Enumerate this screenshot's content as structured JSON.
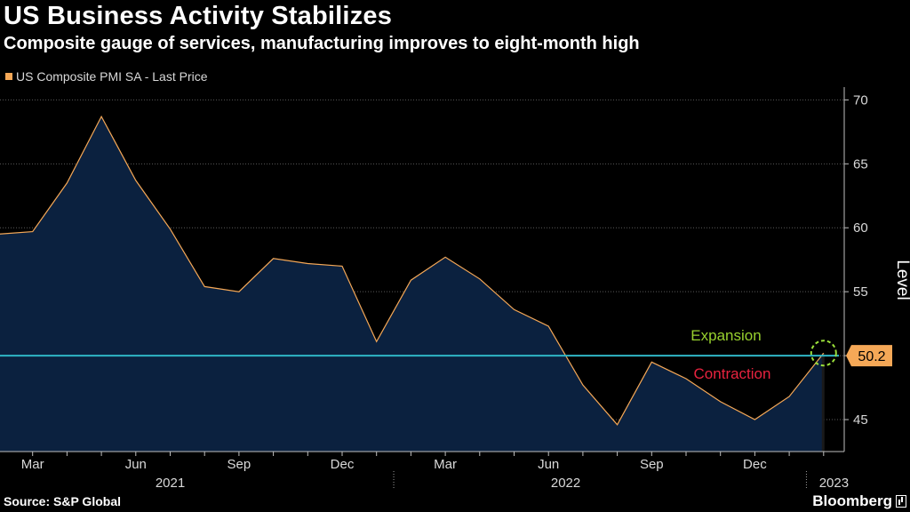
{
  "header": {
    "title": "US Business Activity Stabilizes",
    "subtitle": "Composite gauge of services, manufacturing improves to eight-month high"
  },
  "footer": {
    "source": "Source: S&P Global",
    "brand": "Bloomberg"
  },
  "chart_data": {
    "type": "area",
    "title": "US Business Activity Stabilizes",
    "subtitle": "Composite gauge of services, manufacturing improves to eight-month high",
    "ylabel": "Level",
    "ylim": [
      42.5,
      71
    ],
    "yticks": [
      45,
      50,
      55,
      60,
      65,
      70
    ],
    "ytick_labels": [
      "45",
      "",
      "55",
      "60",
      "65",
      "70"
    ],
    "x_month_labels": [
      {
        "label": "Mar",
        "index": 1
      },
      {
        "label": "Jun",
        "index": 4
      },
      {
        "label": "Sep",
        "index": 7
      },
      {
        "label": "Dec",
        "index": 10
      },
      {
        "label": "Mar",
        "index": 13
      },
      {
        "label": "Jun",
        "index": 16
      },
      {
        "label": "Sep",
        "index": 19
      },
      {
        "label": "Dec",
        "index": 22
      }
    ],
    "x_year_labels": [
      {
        "label": "2021",
        "center_index": 5
      },
      {
        "label": "2022",
        "center_index": 16.5
      },
      {
        "label": "2023",
        "center_index": 24.3
      }
    ],
    "year_separators": [
      11.5,
      23.5
    ],
    "grid": true,
    "legend_position": "top-left",
    "series": [
      {
        "name": "US Composite PMI SA - Last Price",
        "color": "#f5a857",
        "fill": "#0b213f",
        "x": [
          "2021-02",
          "2021-03",
          "2021-04",
          "2021-05",
          "2021-06",
          "2021-07",
          "2021-08",
          "2021-09",
          "2021-10",
          "2021-11",
          "2021-12",
          "2022-01",
          "2022-02",
          "2022-03",
          "2022-04",
          "2022-05",
          "2022-06",
          "2022-07",
          "2022-08",
          "2022-09",
          "2022-10",
          "2022-11",
          "2022-12",
          "2023-01",
          "2023-02"
        ],
        "values": [
          59.5,
          59.7,
          63.5,
          68.7,
          63.7,
          59.9,
          55.4,
          55.0,
          57.6,
          57.2,
          57.0,
          51.1,
          55.9,
          57.7,
          56.0,
          53.6,
          52.3,
          47.7,
          44.6,
          49.5,
          48.2,
          46.4,
          45.0,
          46.8,
          50.2
        ]
      }
    ],
    "reference_line": {
      "value": 50,
      "color": "#2fb6c6"
    },
    "annotations": [
      {
        "text": "Expansion",
        "color": "#98d12e"
      },
      {
        "text": "Contraction",
        "color": "#e8233f"
      }
    ],
    "last_value_label": "50.2",
    "highlight_color": "#9be03a"
  }
}
